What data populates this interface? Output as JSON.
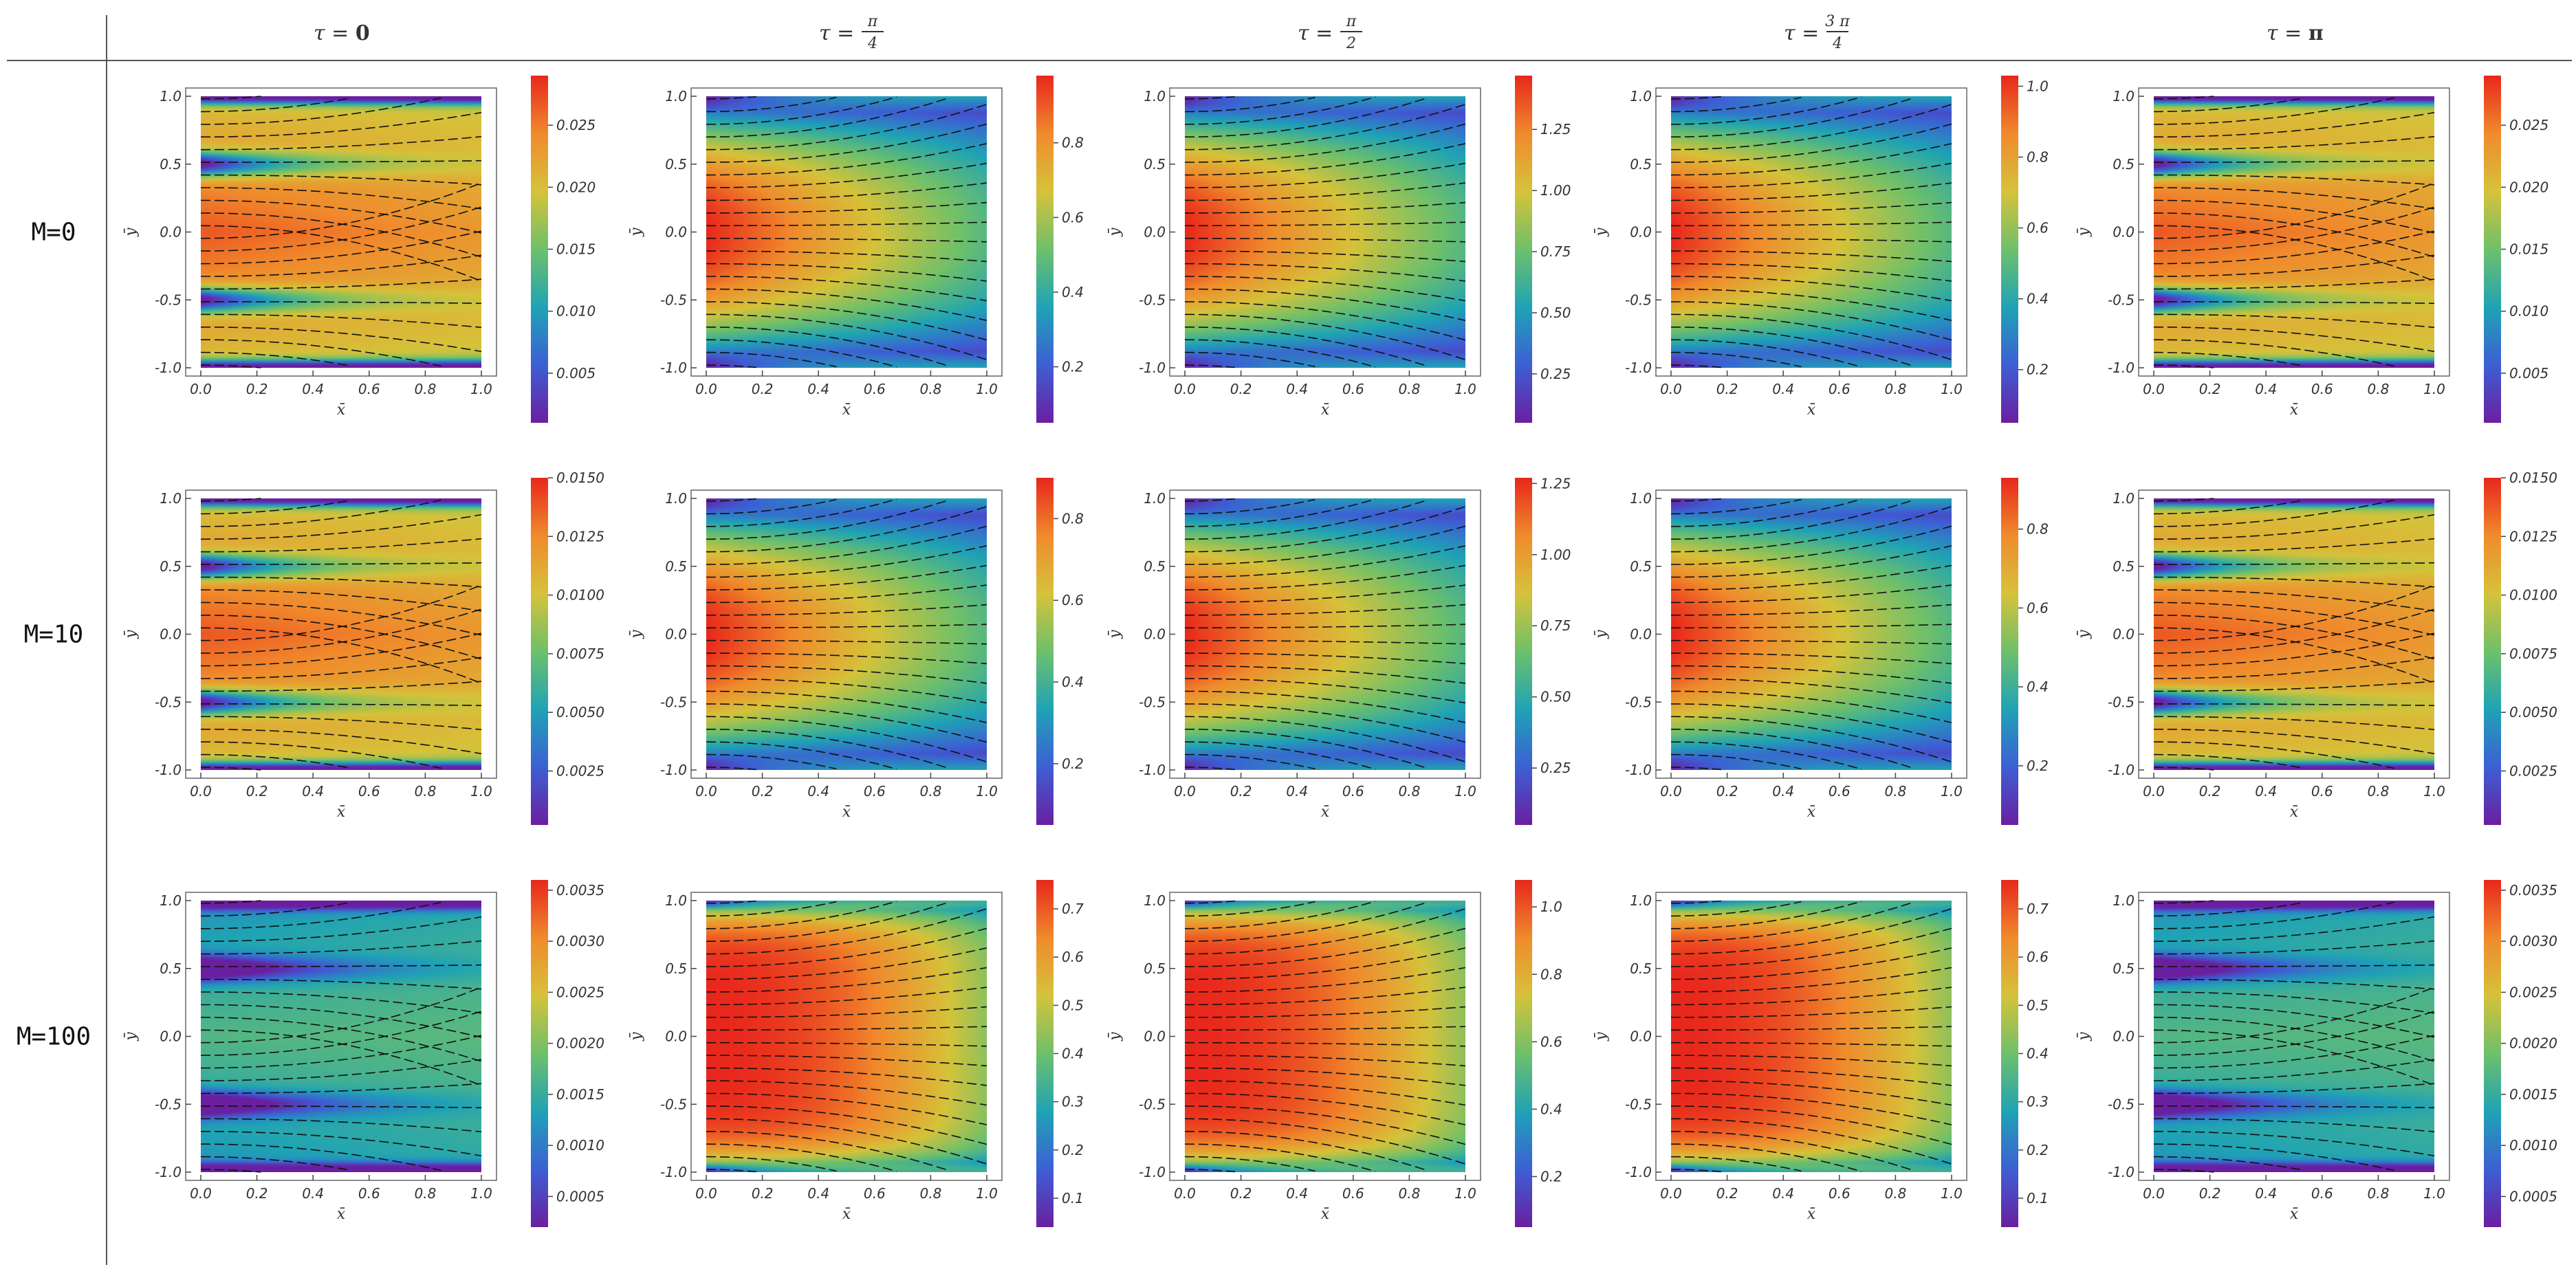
{
  "chart_data": {
    "type": "heatmap",
    "description_grid": "3 rows (M) x 5 columns (tau) of velocity-magnitude density maps with streamlines",
    "column_headers": [
      {
        "lhs": "τ",
        "eq": " = ",
        "num": "",
        "den": "",
        "plain": "0"
      },
      {
        "lhs": "τ",
        "eq": " = ",
        "num": "π",
        "den": "4",
        "plain": ""
      },
      {
        "lhs": "τ",
        "eq": " = ",
        "num": "π",
        "den": "2",
        "plain": ""
      },
      {
        "lhs": "τ",
        "eq": " = ",
        "num": "3 π",
        "den": "4",
        "plain": ""
      },
      {
        "lhs": "τ",
        "eq": " = ",
        "num": "",
        "den": "",
        "plain": "π"
      }
    ],
    "row_headers": [
      "M=0",
      "M=10",
      "M=100"
    ],
    "xlabel": "x̄",
    "ylabel": "ȳ",
    "x_ticks": [
      "0.0",
      "0.2",
      "0.4",
      "0.6",
      "0.8",
      "1.0"
    ],
    "y_ticks": [
      "1.0",
      "0.5",
      "0.0",
      "-0.5",
      "-1.0"
    ],
    "xlim": [
      0,
      1
    ],
    "ylim": [
      -1,
      1
    ],
    "colormap": [
      "#6a1fa0",
      "#3d5fd4",
      "#1fa3b5",
      "#6fc06a",
      "#d6c23a",
      "#f08a2c",
      "#e8271c"
    ],
    "panels": [
      [
        {
          "pattern": "oscillating",
          "vmin": 0.001,
          "vmax": 0.029,
          "colorbar_ticks": [
            "0.025",
            "0.020",
            "0.015",
            "0.010",
            "0.005"
          ]
        },
        {
          "pattern": "flow",
          "vmin": 0.05,
          "vmax": 0.98,
          "colorbar_ticks": [
            "0.8",
            "0.6",
            "0.4",
            "0.2"
          ]
        },
        {
          "pattern": "flow",
          "vmin": 0.05,
          "vmax": 1.47,
          "colorbar_ticks": [
            "1.25",
            "1.00",
            "0.75",
            "0.50",
            "0.25"
          ]
        },
        {
          "pattern": "flow",
          "vmin": 0.05,
          "vmax": 1.03,
          "colorbar_ticks": [
            "1.0",
            "0.8",
            "0.6",
            "0.4",
            "0.2"
          ]
        },
        {
          "pattern": "oscillating",
          "vmin": 0.001,
          "vmax": 0.029,
          "colorbar_ticks": [
            "0.025",
            "0.020",
            "0.015",
            "0.010",
            "0.005"
          ]
        }
      ],
      [
        {
          "pattern": "oscillating",
          "vmin": 0.0002,
          "vmax": 0.015,
          "colorbar_ticks": [
            "0.0150",
            "0.0125",
            "0.0100",
            "0.0075",
            "0.0050",
            "0.0025"
          ]
        },
        {
          "pattern": "flow",
          "vmin": 0.05,
          "vmax": 0.9,
          "colorbar_ticks": [
            "0.8",
            "0.6",
            "0.4",
            "0.2"
          ]
        },
        {
          "pattern": "flow",
          "vmin": 0.05,
          "vmax": 1.27,
          "colorbar_ticks": [
            "1.25",
            "1.00",
            "0.75",
            "0.50",
            "0.25"
          ]
        },
        {
          "pattern": "flow",
          "vmin": 0.05,
          "vmax": 0.93,
          "colorbar_ticks": [
            "0.8",
            "0.6",
            "0.4",
            "0.2"
          ]
        },
        {
          "pattern": "oscillating",
          "vmin": 0.0002,
          "vmax": 0.015,
          "colorbar_ticks": [
            "0.0150",
            "0.0125",
            "0.0100",
            "0.0075",
            "0.0050",
            "0.0025"
          ]
        }
      ],
      [
        {
          "pattern": "oscillating_low",
          "vmin": 0.0002,
          "vmax": 0.0036,
          "colorbar_ticks": [
            "0.0035",
            "0.0030",
            "0.0025",
            "0.0020",
            "0.0015",
            "0.0010",
            "0.0005"
          ]
        },
        {
          "pattern": "flow_strong",
          "vmin": 0.04,
          "vmax": 0.76,
          "colorbar_ticks": [
            "0.7",
            "0.6",
            "0.5",
            "0.4",
            "0.3",
            "0.2",
            "0.1"
          ]
        },
        {
          "pattern": "flow_strong",
          "vmin": 0.05,
          "vmax": 1.08,
          "colorbar_ticks": [
            "1.0",
            "0.8",
            "0.6",
            "0.4",
            "0.2"
          ]
        },
        {
          "pattern": "flow_strong",
          "vmin": 0.04,
          "vmax": 0.76,
          "colorbar_ticks": [
            "0.7",
            "0.6",
            "0.5",
            "0.4",
            "0.3",
            "0.2",
            "0.1"
          ]
        },
        {
          "pattern": "oscillating_low",
          "vmin": 0.0002,
          "vmax": 0.0036,
          "colorbar_ticks": [
            "0.0035",
            "0.0030",
            "0.0025",
            "0.0020",
            "0.0015",
            "0.0010",
            "0.0005"
          ]
        }
      ]
    ]
  }
}
